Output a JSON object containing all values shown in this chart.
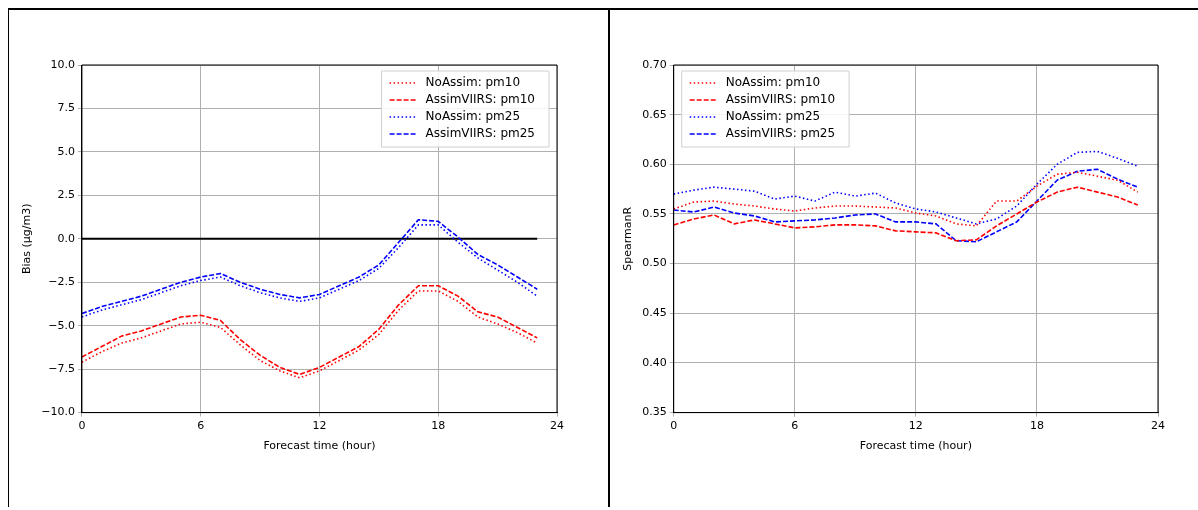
{
  "chart_data": [
    {
      "type": "line",
      "xlabel": "Forecast time (hour)",
      "ylabel": "Bias (μg/m3)",
      "x": [
        0,
        1,
        2,
        3,
        4,
        5,
        6,
        7,
        8,
        9,
        10,
        11,
        12,
        13,
        14,
        15,
        16,
        17,
        18,
        19,
        20,
        21,
        22,
        23
      ],
      "xlim": [
        0,
        24
      ],
      "xticks": [
        0,
        6,
        12,
        18,
        24
      ],
      "ylim": [
        -10,
        10
      ],
      "yticks": [
        {
          "value": -10,
          "label": "−10.0"
        },
        {
          "value": -7.5,
          "label": "−7.5"
        },
        {
          "value": -5,
          "label": "−5.0"
        },
        {
          "value": -2.5,
          "label": "−2.5"
        },
        {
          "value": 0,
          "label": "0.0"
        },
        {
          "value": 2.5,
          "label": "2.5"
        },
        {
          "value": 5,
          "label": "5.0"
        },
        {
          "value": 7.5,
          "label": "7.5"
        },
        {
          "value": 10,
          "label": "10.0"
        }
      ],
      "grid": true,
      "legend": "top right",
      "marker": "none",
      "ref_lines": [
        {
          "axis": "y",
          "value": 0,
          "color": "#000000",
          "line_style": "solid"
        }
      ],
      "series": [
        {
          "name": "NoAssim: pm10",
          "color": "#ff0000",
          "line_style": "dotted",
          "values": [
            -7.1,
            -6.5,
            -6.0,
            -5.7,
            -5.3,
            -4.9,
            -4.8,
            -5.1,
            -6.1,
            -7.0,
            -7.6,
            -8.0,
            -7.6,
            -7.0,
            -6.4,
            -5.5,
            -4.1,
            -3.0,
            -3.0,
            -3.6,
            -4.5,
            -4.9,
            -5.4,
            -6.0
          ]
        },
        {
          "name": "AssimVIIRS: pm10",
          "color": "#ff0000",
          "line_style": "dashed",
          "values": [
            -6.8,
            -6.2,
            -5.6,
            -5.3,
            -4.9,
            -4.5,
            -4.4,
            -4.7,
            -5.8,
            -6.7,
            -7.4,
            -7.8,
            -7.4,
            -6.8,
            -6.2,
            -5.2,
            -3.8,
            -2.7,
            -2.7,
            -3.3,
            -4.2,
            -4.5,
            -5.1,
            -5.7
          ]
        },
        {
          "name": "NoAssim: pm25",
          "color": "#0000ff",
          "line_style": "dotted",
          "values": [
            -4.5,
            -4.1,
            -3.8,
            -3.5,
            -3.1,
            -2.7,
            -2.4,
            -2.2,
            -2.7,
            -3.1,
            -3.4,
            -3.6,
            -3.4,
            -2.9,
            -2.4,
            -1.7,
            -0.5,
            0.8,
            0.8,
            -0.2,
            -1.1,
            -1.8,
            -2.5,
            -3.3
          ]
        },
        {
          "name": "AssimVIIRS: pm25",
          "color": "#0000ff",
          "line_style": "dashed",
          "values": [
            -4.3,
            -3.9,
            -3.6,
            -3.3,
            -2.9,
            -2.5,
            -2.2,
            -2.0,
            -2.5,
            -2.9,
            -3.2,
            -3.4,
            -3.2,
            -2.7,
            -2.2,
            -1.5,
            -0.2,
            1.1,
            1.0,
            0.1,
            -0.9,
            -1.5,
            -2.2,
            -2.9
          ]
        }
      ]
    },
    {
      "type": "line",
      "xlabel": "Forecast time (hour)",
      "ylabel": "SpearmanR",
      "x": [
        0,
        1,
        2,
        3,
        4,
        5,
        6,
        7,
        8,
        9,
        10,
        11,
        12,
        13,
        14,
        15,
        16,
        17,
        18,
        19,
        20,
        21,
        22,
        23
      ],
      "xlim": [
        0,
        24
      ],
      "xticks": [
        0,
        6,
        12,
        18,
        24
      ],
      "ylim": [
        0.35,
        0.7
      ],
      "yticks": [
        {
          "value": 0.35,
          "label": "0.35"
        },
        {
          "value": 0.4,
          "label": "0.40"
        },
        {
          "value": 0.45,
          "label": "0.45"
        },
        {
          "value": 0.5,
          "label": "0.50"
        },
        {
          "value": 0.55,
          "label": "0.55"
        },
        {
          "value": 0.6,
          "label": "0.60"
        },
        {
          "value": 0.65,
          "label": "0.65"
        },
        {
          "value": 0.7,
          "label": "0.70"
        }
      ],
      "grid": true,
      "legend": "top left",
      "marker": "none",
      "series": [
        {
          "name": "NoAssim: pm10",
          "color": "#ff0000",
          "line_style": "dotted",
          "values": [
            0.555,
            0.562,
            0.563,
            0.56,
            0.558,
            0.555,
            0.553,
            0.556,
            0.558,
            0.558,
            0.557,
            0.556,
            0.551,
            0.548,
            0.54,
            0.538,
            0.563,
            0.563,
            0.578,
            0.59,
            0.592,
            0.588,
            0.584,
            0.572
          ]
        },
        {
          "name": "AssimVIIRS: pm10",
          "color": "#ff0000",
          "line_style": "dashed",
          "values": [
            0.539,
            0.545,
            0.549,
            0.54,
            0.544,
            0.54,
            0.536,
            0.537,
            0.539,
            0.539,
            0.538,
            0.533,
            0.532,
            0.531,
            0.523,
            0.524,
            0.538,
            0.55,
            0.562,
            0.572,
            0.577,
            0.572,
            0.567,
            0.559
          ]
        },
        {
          "name": "NoAssim: pm25",
          "color": "#0000ff",
          "line_style": "dotted",
          "values": [
            0.57,
            0.574,
            0.577,
            0.575,
            0.573,
            0.565,
            0.568,
            0.563,
            0.572,
            0.568,
            0.571,
            0.561,
            0.555,
            0.552,
            0.546,
            0.54,
            0.545,
            0.558,
            0.58,
            0.6,
            0.612,
            0.613,
            0.606,
            0.598
          ]
        },
        {
          "name": "AssimVIIRS: pm25",
          "color": "#0000ff",
          "line_style": "dashed",
          "values": [
            0.554,
            0.552,
            0.557,
            0.551,
            0.548,
            0.542,
            0.543,
            0.544,
            0.546,
            0.549,
            0.55,
            0.542,
            0.542,
            0.54,
            0.523,
            0.522,
            0.532,
            0.542,
            0.563,
            0.584,
            0.593,
            0.595,
            0.585,
            0.577
          ]
        }
      ]
    }
  ]
}
